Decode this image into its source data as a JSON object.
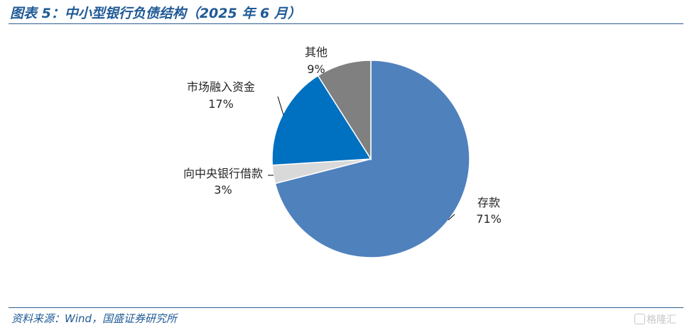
{
  "title": "图表 5：中小型银行负债结构（2025 年 6 月）",
  "source": "资料来源：Wind，国盛证券研究所",
  "watermark": "格隆汇",
  "colors": {
    "title": "#1f5a96",
    "slices": [
      "#4f81bd",
      "#d9d9d9",
      "#0070c0",
      "#808080"
    ]
  },
  "chart_data": {
    "type": "pie",
    "title": "图表 5：中小型银行负债结构（2025 年 6 月）",
    "slices": [
      {
        "label": "存款",
        "value": 71,
        "value_label": "71%"
      },
      {
        "label": "向中央银行借款",
        "value": 3,
        "value_label": "3%"
      },
      {
        "label": "市场融入资金",
        "value": 17,
        "value_label": "17%"
      },
      {
        "label": "其他",
        "value": 9,
        "value_label": "9%"
      }
    ],
    "start": "12 o'clock",
    "direction": "clockwise",
    "legend": "none"
  }
}
